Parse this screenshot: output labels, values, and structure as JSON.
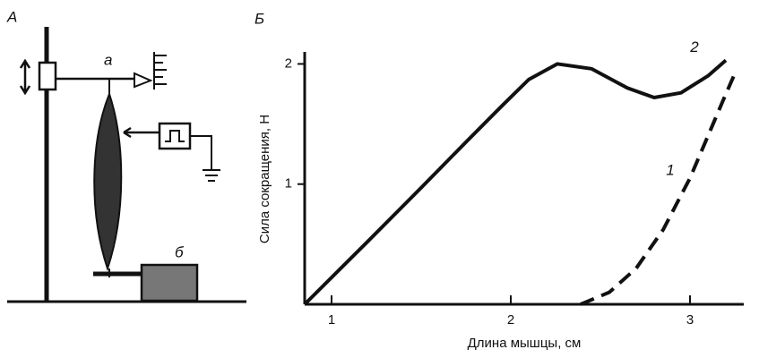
{
  "diagram": {
    "label": "А",
    "top_label": "а",
    "weight_label": "б"
  },
  "chart_data": {
    "type": "line",
    "panel_label": "Б",
    "x_label": "Длина мышцы, см",
    "y_label": "Сила сокращения, Н",
    "xlim": [
      0.85,
      3.3
    ],
    "ylim": [
      0,
      2.1
    ],
    "xticks": [
      1,
      2,
      3
    ],
    "yticks": [
      1,
      2
    ],
    "series": [
      {
        "name": "1",
        "color": "#111111",
        "line_style": "dashed",
        "x": [
          2.39,
          2.55,
          2.7,
          2.85,
          3.0,
          3.1,
          3.18,
          3.25
        ],
        "values": [
          0,
          0.1,
          0.3,
          0.62,
          1.05,
          1.4,
          1.68,
          1.92
        ]
      },
      {
        "name": "2",
        "color": "#111111",
        "line_style": "solid",
        "x": [
          0.85,
          1.2,
          1.5,
          1.75,
          1.95,
          2.1,
          2.26,
          2.45,
          2.65,
          2.8,
          2.95,
          3.1,
          3.2
        ],
        "values": [
          0,
          0.52,
          0.97,
          1.35,
          1.65,
          1.87,
          2.0,
          1.96,
          1.8,
          1.72,
          1.76,
          1.9,
          2.03
        ]
      }
    ]
  }
}
